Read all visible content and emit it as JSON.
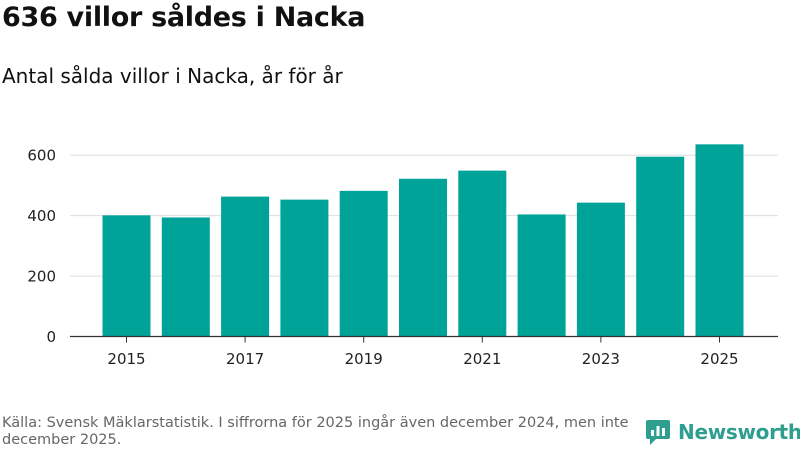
{
  "header": {
    "title": "636 villor såldes i Nacka",
    "subtitle": "Antal sålda villor i Nacka, år för år"
  },
  "footer": {
    "source": "Källa: Svensk Mäklarstatistik. I siffrorna för 2025 ingår även december 2024, men inte december 2025.",
    "brand": "Newsworthy"
  },
  "colors": {
    "bar": "#00a398",
    "brand": "#2e9f8f"
  },
  "chart_data": {
    "type": "bar",
    "categories": [
      "2015",
      "2016",
      "2017",
      "2018",
      "2019",
      "2020",
      "2021",
      "2022",
      "2023",
      "2024",
      "2025"
    ],
    "values": [
      401,
      394,
      463,
      453,
      482,
      522,
      549,
      404,
      443,
      595,
      636
    ],
    "title": "636 villor såldes i Nacka",
    "subtitle": "Antal sålda villor i Nacka, år för år",
    "xlabel": "",
    "ylabel": "",
    "ylim": [
      0,
      700
    ],
    "yticks": [
      0,
      200,
      400,
      600
    ],
    "xtick_labels": [
      "2015",
      "2017",
      "2019",
      "2021",
      "2023",
      "2025"
    ],
    "grid": true,
    "legend": "none"
  }
}
